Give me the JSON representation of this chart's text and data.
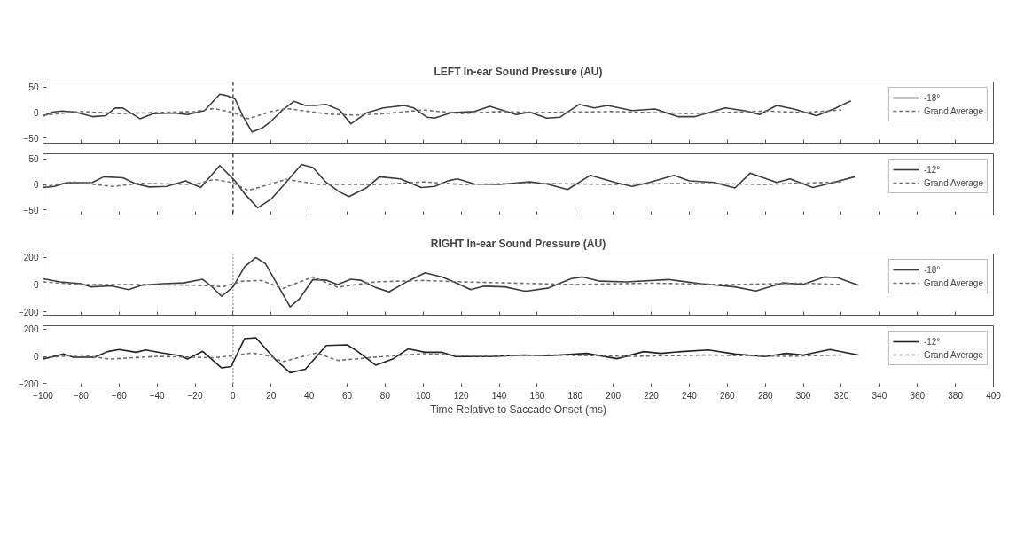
{
  "chart_data": [
    {
      "type": "line",
      "title": "LEFT In-ear Sound Pressure (AU)",
      "xlim": [
        -100,
        400
      ],
      "ylim": [
        -60,
        60
      ],
      "xticks": [
        -100,
        -80,
        -60,
        -40,
        -20,
        0,
        20,
        40,
        60,
        80,
        100,
        120,
        140,
        160,
        180,
        200,
        220,
        240,
        260,
        280,
        300,
        320,
        340,
        360,
        380,
        400
      ],
      "yticks": [
        -50,
        0,
        50
      ],
      "tick_labels": "y",
      "grid": false,
      "legend": "top right",
      "ref_lines": [
        {
          "axis": "x",
          "value": 0,
          "label": null,
          "color": "#222222",
          "line_style": "dashed"
        }
      ],
      "series": [
        {
          "name": "-18°",
          "color": "#3c3c3c",
          "line_style": "solid",
          "x": [
            -100,
            -95,
            -90,
            -83,
            -74,
            -67,
            -62,
            -58,
            -49,
            -42,
            -31,
            -24,
            -15,
            -7,
            -3,
            1,
            5,
            10,
            15,
            20,
            26,
            32,
            38,
            43,
            49,
            56,
            62,
            70,
            79,
            90,
            95,
            102,
            106,
            115,
            127,
            135,
            145,
            149,
            156,
            165,
            172,
            182,
            190,
            197,
            210,
            222,
            234,
            243,
            259,
            270,
            277,
            286,
            295,
            307,
            316,
            325
          ],
          "values": [
            -7,
            1,
            3,
            1,
            -8,
            -6,
            9,
            9,
            -12,
            -2,
            -1,
            -4,
            4,
            36,
            33,
            27,
            -6,
            -38,
            -31,
            -17,
            5,
            22,
            14,
            14,
            16,
            5,
            -22,
            -1,
            9,
            14,
            9,
            -9,
            -11,
            0,
            2,
            12,
            1,
            -4,
            1,
            -11,
            -9,
            16,
            9,
            14,
            4,
            7,
            -8,
            -8,
            9,
            3,
            -4,
            14,
            7,
            -6,
            7,
            23
          ]
        },
        {
          "name": "Grand Average",
          "color": "#6e6e6e",
          "line_style": "dashed",
          "x": [
            -100,
            -80,
            -60,
            -40,
            -20,
            -10,
            0,
            8,
            20,
            28,
            40,
            50,
            65,
            80,
            100,
            120,
            140,
            160,
            200,
            240,
            280,
            300,
            320
          ],
          "values": [
            -5,
            2,
            -2,
            0,
            2,
            8,
            0,
            -12,
            2,
            8,
            2,
            -3,
            -5,
            -2,
            5,
            -2,
            2,
            0,
            2,
            -2,
            3,
            0,
            5
          ]
        }
      ]
    },
    {
      "type": "line",
      "xlim": [
        -100,
        400
      ],
      "ylim": [
        -60,
        60
      ],
      "xticks": [
        -100,
        -80,
        -60,
        -40,
        -20,
        0,
        20,
        40,
        60,
        80,
        100,
        120,
        140,
        160,
        180,
        200,
        220,
        240,
        260,
        280,
        300,
        320,
        340,
        360,
        380,
        400
      ],
      "yticks": [
        -50,
        0,
        50
      ],
      "tick_labels": "y",
      "grid": false,
      "legend": "top right",
      "ref_lines": [
        {
          "axis": "x",
          "value": 0,
          "label": null,
          "color": "#222222",
          "line_style": "dashed"
        }
      ],
      "series": [
        {
          "name": "-12°",
          "color": "#3c3c3c",
          "line_style": "solid",
          "x": [
            -100,
            -94,
            -88,
            -74,
            -68,
            -58,
            -51,
            -44,
            -35,
            -25,
            -17,
            -7,
            1,
            6,
            13,
            20,
            26,
            36,
            42,
            49,
            56,
            61,
            70,
            77,
            88,
            99,
            106,
            113,
            118,
            127,
            140,
            156,
            165,
            176,
            188,
            201,
            210,
            219,
            232,
            240,
            253,
            264,
            272,
            286,
            293,
            305,
            316,
            327
          ],
          "values": [
            -6,
            -4,
            3,
            4,
            15,
            13,
            1,
            -5,
            -4,
            7,
            -6,
            37,
            7,
            -18,
            -46,
            -29,
            -4,
            39,
            33,
            4,
            -15,
            -24,
            -7,
            15,
            11,
            -6,
            -4,
            7,
            11,
            1,
            0,
            5,
            1,
            -10,
            18,
            4,
            -4,
            4,
            18,
            7,
            4,
            -7,
            22,
            4,
            11,
            -6,
            4,
            15
          ]
        },
        {
          "name": "Grand Average",
          "color": "#6e6e6e",
          "line_style": "dashed",
          "x": [
            -100,
            -85,
            -63,
            -50,
            -20,
            -10,
            0,
            8,
            28,
            45,
            80,
            100,
            120,
            160,
            200,
            240,
            280,
            320
          ],
          "values": [
            -5,
            5,
            -4,
            2,
            0,
            10,
            3,
            -12,
            10,
            0,
            0,
            5,
            0,
            2,
            0,
            2,
            0,
            5
          ]
        }
      ]
    },
    {
      "type": "line",
      "title": "RIGHT In-ear Sound Pressure (AU)",
      "xlim": [
        -100,
        400
      ],
      "ylim": [
        -225,
        225
      ],
      "xticks": [
        -100,
        -80,
        -60,
        -40,
        -20,
        0,
        20,
        40,
        60,
        80,
        100,
        120,
        140,
        160,
        180,
        200,
        220,
        240,
        260,
        280,
        300,
        320,
        340,
        360,
        380,
        400
      ],
      "yticks": [
        -200,
        0,
        200
      ],
      "tick_labels": "y",
      "grid": false,
      "legend": "top right",
      "ref_lines": [
        {
          "axis": "x",
          "value": 0,
          "label": null,
          "color": "#222222",
          "line_style": "dotted"
        }
      ],
      "series": [
        {
          "name": "-18°",
          "color": "#3c3c3c",
          "line_style": "solid",
          "x": [
            -100,
            -91,
            -80,
            -75,
            -64,
            -55,
            -48,
            -37,
            -26,
            -16,
            -12,
            -6,
            0,
            6,
            12,
            17,
            22,
            30,
            35,
            42,
            49,
            55,
            62,
            67,
            75,
            82,
            92,
            101,
            110,
            119,
            125,
            132,
            143,
            153,
            155,
            166,
            178,
            184,
            193,
            207,
            229,
            246,
            264,
            275,
            289,
            300,
            311,
            318,
            329
          ],
          "values": [
            42,
            20,
            7,
            -17,
            -10,
            -37,
            -5,
            7,
            12,
            39,
            -5,
            -86,
            -17,
            130,
            199,
            154,
            32,
            -164,
            -103,
            37,
            32,
            0,
            39,
            32,
            -22,
            -54,
            25,
            86,
            56,
            2,
            -37,
            -12,
            -17,
            -47,
            -47,
            -25,
            44,
            56,
            25,
            20,
            37,
            7,
            -17,
            -47,
            12,
            2,
            56,
            51,
            -5
          ]
        },
        {
          "name": "Grand Average",
          "color": "#6e6e6e",
          "line_style": "dashed",
          "x": [
            -100,
            -80,
            -50,
            -20,
            -5,
            5,
            15,
            26,
            42,
            55,
            75,
            100,
            120,
            150,
            180,
            220,
            260,
            300,
            320
          ],
          "values": [
            20,
            0,
            0,
            -5,
            -15,
            25,
            30,
            -30,
            56,
            -20,
            20,
            30,
            20,
            10,
            0,
            10,
            0,
            10,
            0
          ]
        }
      ]
    },
    {
      "type": "line",
      "xlabel": "Time Relative to Saccade Onset (ms)",
      "xlim": [
        -100,
        400
      ],
      "ylim": [
        -225,
        225
      ],
      "xticks": [
        -100,
        -80,
        -60,
        -40,
        -20,
        0,
        20,
        40,
        60,
        80,
        100,
        120,
        140,
        160,
        180,
        200,
        220,
        240,
        260,
        280,
        300,
        320,
        340,
        360,
        380,
        400
      ],
      "yticks": [
        -200,
        0,
        200
      ],
      "grid": false,
      "legend": "top right",
      "ref_lines": [
        {
          "axis": "x",
          "value": 0,
          "label": null,
          "color": "#222222",
          "line_style": "dotted"
        }
      ],
      "series": [
        {
          "name": "-12°",
          "color": "#222222",
          "line_style": "solid",
          "x": [
            -100,
            -89,
            -84,
            -73,
            -66,
            -60,
            -51,
            -46,
            -37,
            -28,
            -24,
            -16,
            -6,
            -1,
            6,
            12,
            22,
            30,
            38,
            49,
            60,
            65,
            75,
            84,
            92,
            101,
            110,
            117,
            135,
            153,
            166,
            186,
            202,
            216,
            225,
            236,
            250,
            264,
            280,
            291,
            300,
            314,
            329
          ],
          "values": [
            -20,
            17,
            -7,
            -7,
            35,
            50,
            30,
            47,
            25,
            5,
            -20,
            37,
            -85,
            -75,
            130,
            137,
            -20,
            -120,
            -95,
            80,
            85,
            42,
            -65,
            -20,
            55,
            30,
            30,
            -2,
            -2,
            10,
            5,
            22,
            -17,
            35,
            22,
            35,
            47,
            17,
            -2,
            22,
            10,
            50,
            10
          ]
        },
        {
          "name": "Grand Average",
          "color": "#6e6e6e",
          "line_style": "dashed",
          "x": [
            -100,
            -80,
            -65,
            -40,
            -10,
            0,
            10,
            20,
            26,
            44,
            55,
            80,
            100,
            130,
            170,
            210,
            250,
            290,
            320
          ],
          "values": [
            -10,
            10,
            -20,
            0,
            -10,
            5,
            25,
            0,
            -40,
            25,
            -30,
            0,
            20,
            0,
            10,
            0,
            10,
            0,
            10
          ]
        }
      ]
    }
  ]
}
